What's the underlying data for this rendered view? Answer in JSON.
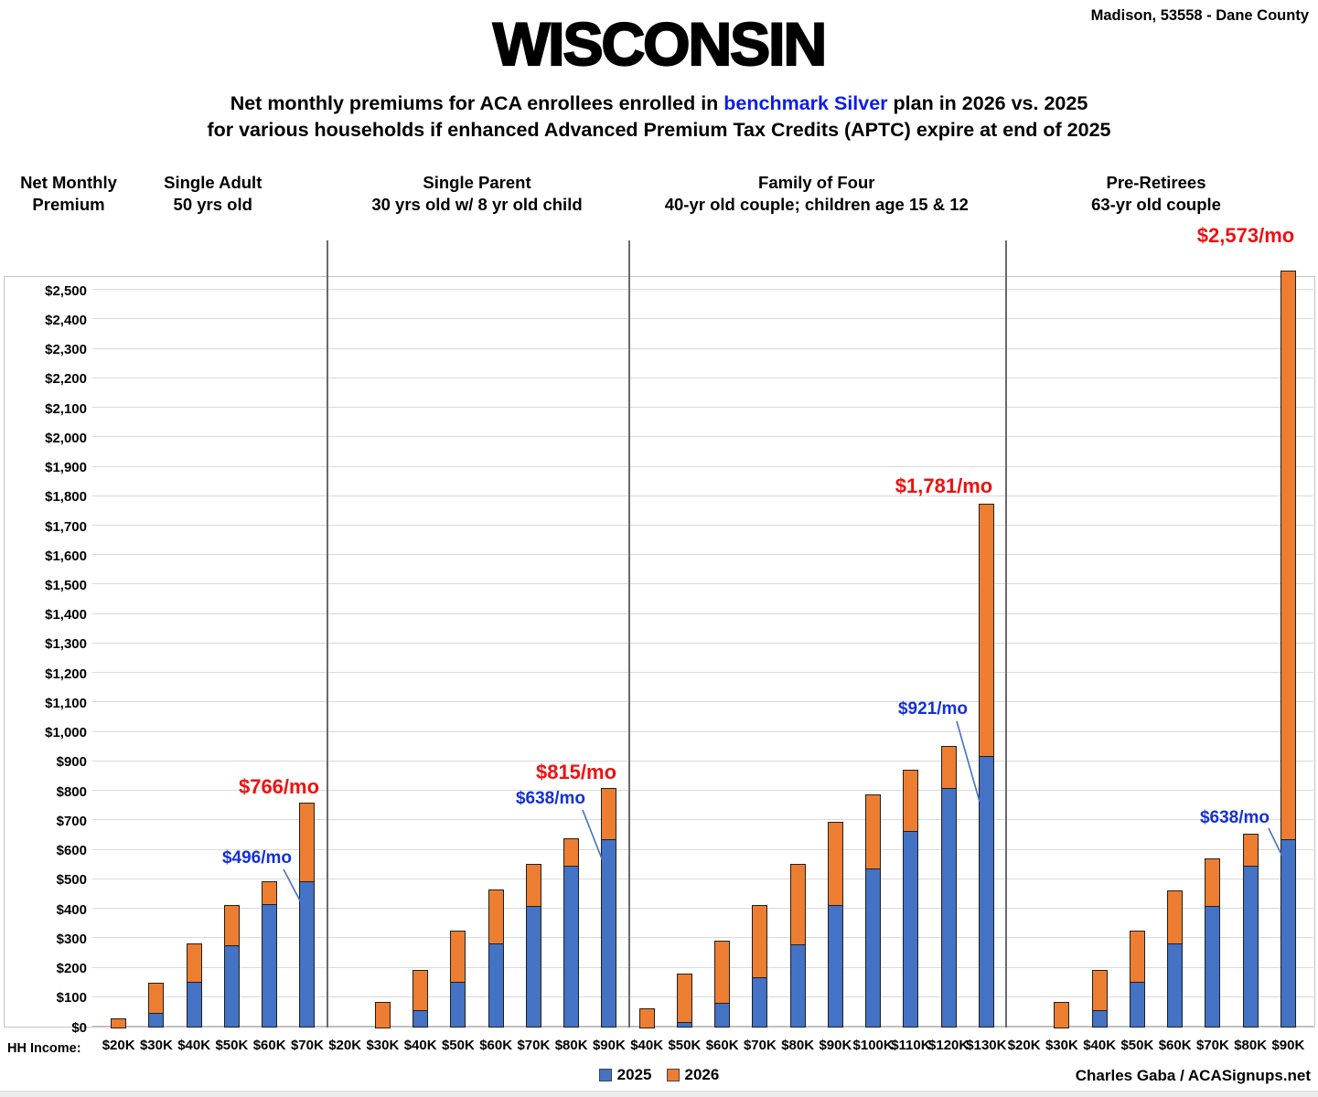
{
  "header": {
    "location": "Madison, 53558 - Dane County",
    "title": "WISCONSIN",
    "subtitle1_pre": "Net monthly premiums for ACA enrollees enrolled in ",
    "subtitle1_highlight": "benchmark Silver",
    "subtitle1_post": " plan in 2026 vs. 2025",
    "subtitle2": "for various households if enhanced Advanced Premium Tax Credits (APTC) expire at end of 2025"
  },
  "y_axis_title": {
    "line1": "Net Monthly",
    "line2": "Premium"
  },
  "hh_income_label": "HH Income:",
  "legend": [
    {
      "label": "2025",
      "color": "#4472C4"
    },
    {
      "label": "2026",
      "color": "#ED7D31"
    }
  ],
  "credit": "Charles Gaba / ACASignups.net",
  "colors": {
    "bar_2025": "#4472C4",
    "bar_2026": "#ED7D31",
    "annotation_red": "#ee1111",
    "annotation_blue": "#1430d8",
    "highlight_blue": "#0b1ee7"
  },
  "chart_data": {
    "type": "bar",
    "stacked": true,
    "title": "Net monthly premiums for ACA enrollees enrolled in benchmark Silver plan in 2026 vs. 2025",
    "ylabel": "Net Monthly Premium ($/mo)",
    "xlabel": "HH Income",
    "ylim": [
      0,
      2550
    ],
    "ytick_step": 100,
    "ytick_max": 2500,
    "grid": true,
    "legend_position": "bottom",
    "series_names": [
      "2025",
      "2026"
    ],
    "groups": [
      {
        "title": "Single Adult",
        "subtitle": "50 yrs old",
        "incomes": [
          "$20K",
          "$30K",
          "$40K",
          "$50K",
          "$60K",
          "$70K"
        ],
        "premium_2025": [
          0,
          50,
          155,
          280,
          420,
          496
        ],
        "premium_2026": [
          33,
          155,
          290,
          418,
          500,
          766
        ],
        "label_2025": "$496/mo",
        "label_2026": "$766/mo"
      },
      {
        "title": "Single Parent",
        "subtitle": "30 yrs old w/ 8 yr old child",
        "incomes": [
          "$20K",
          "$30K",
          "$40K",
          "$50K",
          "$60K",
          "$70K",
          "$80K",
          "$90K"
        ],
        "premium_2025": [
          0,
          0,
          60,
          155,
          285,
          413,
          550,
          638
        ],
        "premium_2026": [
          0,
          90,
          200,
          333,
          473,
          560,
          645,
          815
        ],
        "label_2025": "$638/mo",
        "label_2026": "$815/mo"
      },
      {
        "title": "Family of Four",
        "subtitle": "40-yr old couple; children age 15 & 12",
        "incomes": [
          "$40K",
          "$50K",
          "$60K",
          "$70K",
          "$80K",
          "$90K",
          "$100K",
          "$110K",
          "$120K",
          "$130K"
        ],
        "premium_2025": [
          0,
          20,
          83,
          172,
          283,
          415,
          540,
          667,
          813,
          921
        ],
        "premium_2026": [
          68,
          185,
          297,
          420,
          558,
          700,
          795,
          878,
          958,
          1781
        ],
        "label_2025": "$921/mo",
        "label_2026": "$1,781/mo"
      },
      {
        "title": "Pre-Retirees",
        "subtitle": "63-yr old couple",
        "incomes": [
          "$20K",
          "$30K",
          "$40K",
          "$50K",
          "$60K",
          "$70K",
          "$80K",
          "$90K"
        ],
        "premium_2025": [
          0,
          0,
          60,
          155,
          285,
          413,
          550,
          638
        ],
        "premium_2026": [
          0,
          90,
          200,
          333,
          470,
          578,
          662,
          2573
        ],
        "label_2025": "$638/mo",
        "label_2026": "$2,573/mo"
      }
    ]
  }
}
